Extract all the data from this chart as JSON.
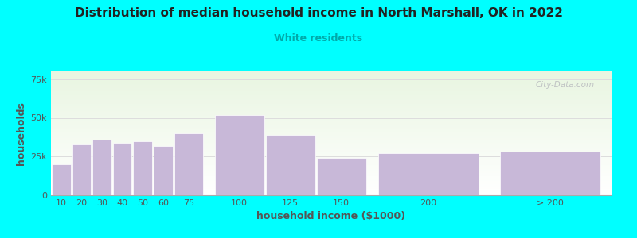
{
  "title": "Distribution of median household income in North Marshall, OK in 2022",
  "subtitle": "White residents",
  "xlabel": "household income ($1000)",
  "ylabel": "households",
  "bar_color": "#C8B8D8",
  "bar_edge_color": "#ffffff",
  "background_color": "#00FFFF",
  "plot_bg_top": "#e8f5e0",
  "plot_bg_bottom": "#ffffff",
  "title_color": "#222222",
  "subtitle_color": "#00AAAA",
  "axis_label_color": "#555555",
  "tick_label_color": "#555555",
  "grid_color": "#dddddd",
  "watermark": "City-Data.com",
  "categories": [
    "10",
    "20",
    "30",
    "40",
    "50",
    "60",
    "75",
    "100",
    "125",
    "150",
    "200",
    "> 200"
  ],
  "values": [
    20000,
    33000,
    36000,
    34000,
    35000,
    32000,
    40000,
    52000,
    39000,
    24000,
    27000,
    28000
  ],
  "ylim": [
    0,
    80000
  ],
  "yticks": [
    0,
    25000,
    50000,
    75000
  ],
  "ytick_labels": [
    "0",
    "25k",
    "50k",
    "75k"
  ],
  "bar_widths": [
    10,
    10,
    10,
    10,
    10,
    10,
    15,
    25,
    25,
    25,
    50,
    50
  ],
  "bar_lefts": [
    5,
    15,
    25,
    35,
    45,
    55,
    65,
    85,
    110,
    135,
    165,
    225
  ],
  "figsize": [
    8.0,
    3.0
  ],
  "dpi": 100
}
